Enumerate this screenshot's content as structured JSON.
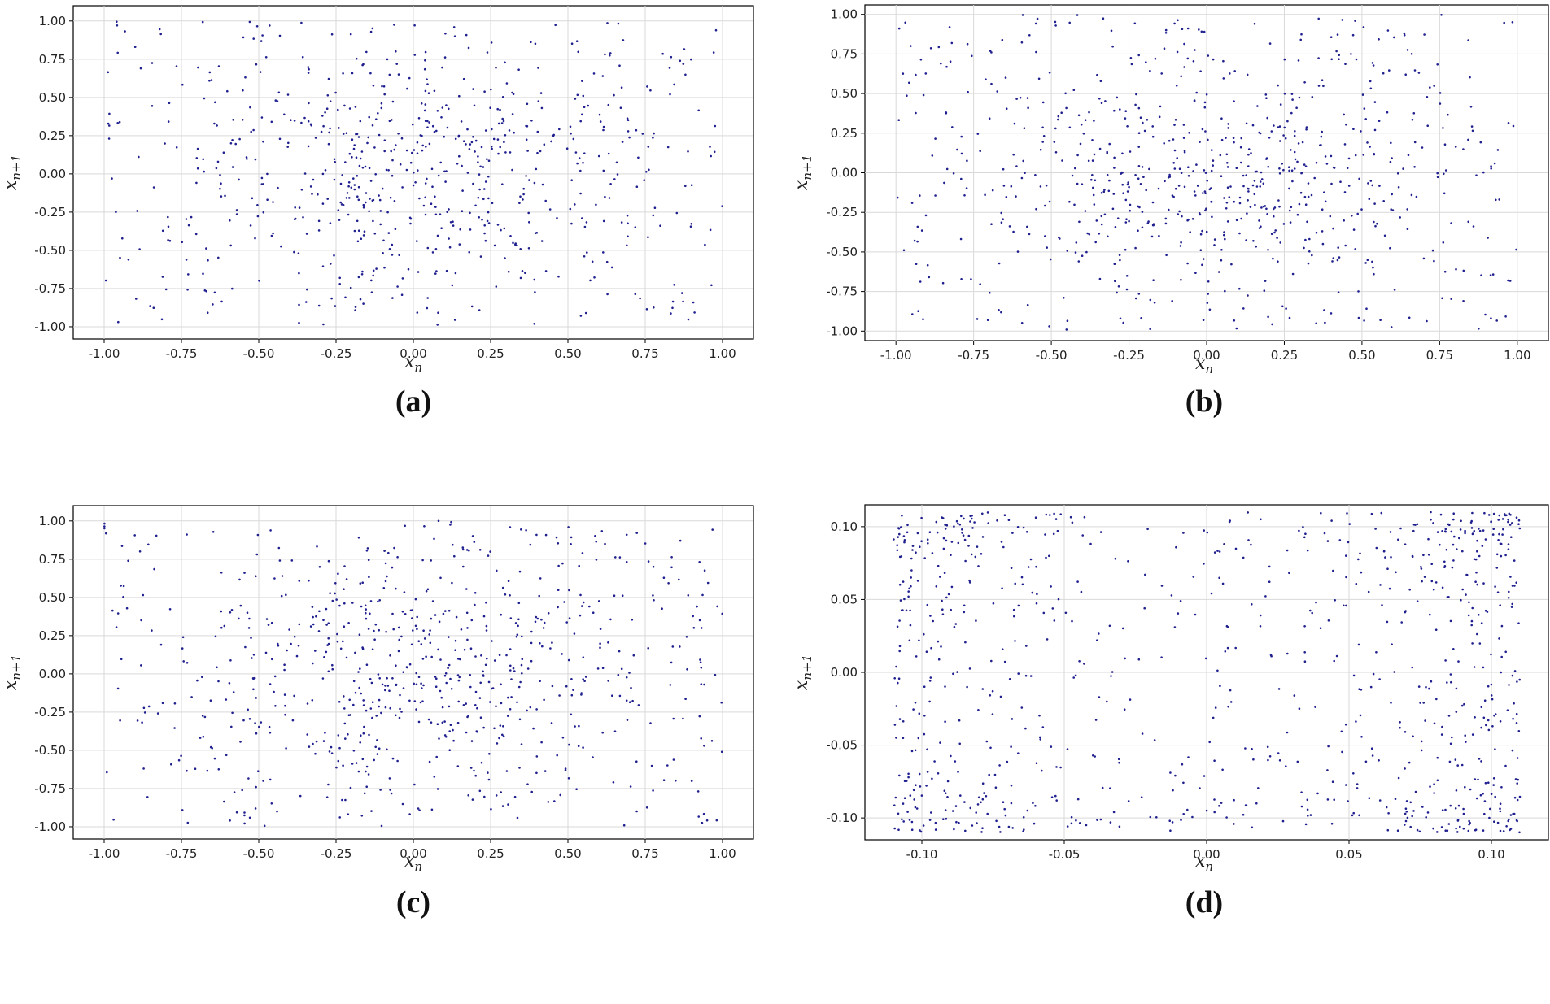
{
  "chart_data": [
    {
      "id": "a",
      "type": "scatter",
      "caption": "(a)",
      "xlabel": "x",
      "xlabel_sub": "n",
      "ylabel": "x",
      "ylabel_sub": "n+1",
      "xlim": [
        -1.1,
        1.1
      ],
      "ylim": [
        -1.08,
        1.1
      ],
      "xticks": [
        -1.0,
        -0.75,
        -0.5,
        -0.25,
        0.0,
        0.25,
        0.5,
        0.75,
        1.0
      ],
      "xtick_labels": [
        "-1.00",
        "-0.75",
        "-0.50",
        "-0.25",
        "0.00",
        "0.25",
        "0.50",
        "0.75",
        "1.00"
      ],
      "yticks": [
        -1.0,
        -0.75,
        -0.5,
        -0.25,
        0.0,
        0.25,
        0.5,
        0.75,
        1.0
      ],
      "ytick_labels": [
        "-1.00",
        "-0.75",
        "-0.50",
        "-0.25",
        "0.00",
        "0.25",
        "0.50",
        "0.75",
        "1.00"
      ],
      "grid": true,
      "marker_color": "#1f1f8f",
      "n_points": 750,
      "distribution": "centered",
      "points": []
    },
    {
      "id": "b",
      "type": "scatter",
      "caption": "(b)",
      "xlabel": "x",
      "xlabel_sub": "n",
      "ylabel": "x",
      "ylabel_sub": "n+1",
      "xlim": [
        -1.1,
        1.1
      ],
      "ylim": [
        -1.06,
        1.06
      ],
      "xticks": [
        -1.0,
        -0.75,
        -0.5,
        -0.25,
        0.0,
        0.25,
        0.5,
        0.75,
        1.0
      ],
      "xtick_labels": [
        "-1.00",
        "-0.75",
        "-0.50",
        "-0.25",
        "0.00",
        "0.25",
        "0.50",
        "0.75",
        "1.00"
      ],
      "yticks": [
        -1.0,
        -0.75,
        -0.5,
        -0.25,
        0.0,
        0.25,
        0.5,
        0.75,
        1.0
      ],
      "ytick_labels": [
        "-1.00",
        "-0.75",
        "-0.50",
        "-0.25",
        "0.00",
        "0.25",
        "0.50",
        "0.75",
        "1.00"
      ],
      "grid": true,
      "marker_color": "#1f1f8f",
      "n_points": 800,
      "distribution": "centered",
      "points": []
    },
    {
      "id": "c",
      "type": "scatter",
      "caption": "(c)",
      "xlabel": "x",
      "xlabel_sub": "n",
      "ylabel": "x",
      "ylabel_sub": "n+1",
      "xlim": [
        -1.1,
        1.1
      ],
      "ylim": [
        -1.08,
        1.1
      ],
      "xticks": [
        -1.0,
        -0.75,
        -0.5,
        -0.25,
        0.0,
        0.25,
        0.5,
        0.75,
        1.0
      ],
      "xtick_labels": [
        "-1.00",
        "-0.75",
        "-0.50",
        "-0.25",
        "0.00",
        "0.25",
        "0.50",
        "0.75",
        "1.00"
      ],
      "yticks": [
        -1.0,
        -0.75,
        -0.5,
        -0.25,
        0.0,
        0.25,
        0.5,
        0.75,
        1.0
      ],
      "ytick_labels": [
        "-1.00",
        "-0.75",
        "-0.50",
        "-0.25",
        "0.00",
        "0.25",
        "0.50",
        "0.75",
        "1.00"
      ],
      "grid": true,
      "marker_color": "#1f1f8f",
      "n_points": 780,
      "distribution": "centered",
      "points": []
    },
    {
      "id": "d",
      "type": "scatter",
      "caption": "(d)",
      "xlabel": "x",
      "xlabel_sub": "n",
      "ylabel": "x",
      "ylabel_sub": "n+1",
      "xlim": [
        -0.12,
        0.12
      ],
      "ylim": [
        -0.115,
        0.115
      ],
      "xticks": [
        -0.1,
        -0.05,
        0.0,
        0.05,
        0.1
      ],
      "xtick_labels": [
        "-0.10",
        "-0.05",
        "0.00",
        "0.05",
        "0.10"
      ],
      "yticks": [
        -0.1,
        -0.05,
        0.0,
        0.05,
        0.1
      ],
      "ytick_labels": [
        "-0.10",
        "-0.05",
        "0.00",
        "0.05",
        "0.10"
      ],
      "grid": true,
      "marker_color": "#1f1f8f",
      "n_points": 900,
      "distribution": "edges",
      "bound": 0.11,
      "points": []
    }
  ]
}
